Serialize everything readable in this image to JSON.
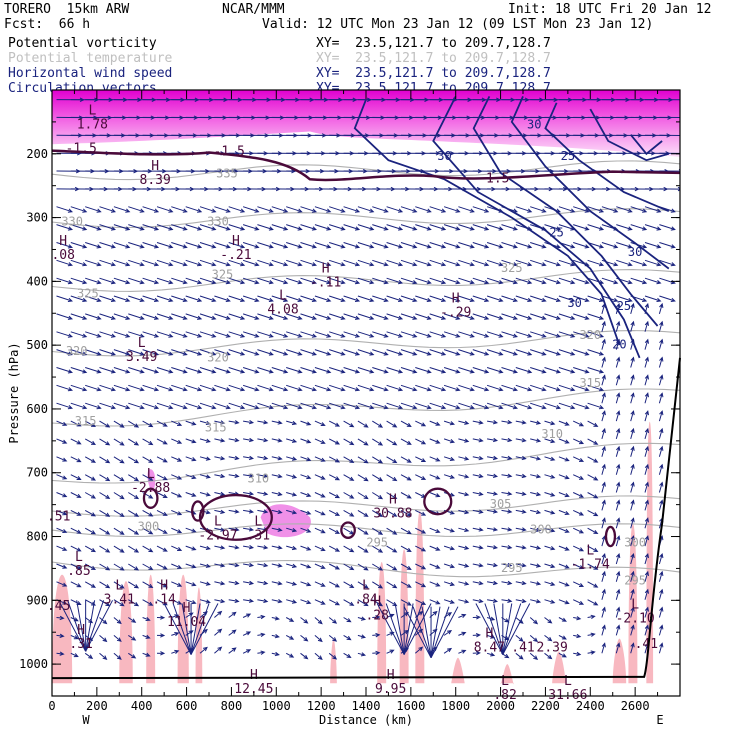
{
  "header": {
    "model": "TORERO  15km ARW",
    "org": "NCAR/MMM",
    "init": "Init: 18 UTC Fri 20 Jan 12",
    "fcst": "Fcst:  66 h",
    "valid": "Valid: 12 UTC Mon 23 Jan 12 (09 LST Mon 23 Jan 12)",
    "fields": [
      {
        "name": "Potential vorticity",
        "color": "#000000"
      },
      {
        "name": "Potential temperature",
        "color": "#c0c0c0"
      },
      {
        "name": "Horizontal wind speed",
        "color": "#1a237e"
      },
      {
        "name": "Circulation vectors",
        "color": "#1a237e"
      }
    ],
    "xy": "XY=  23.5,121.7 to 209.7,128.7"
  },
  "chart_data": {
    "type": "cross-section",
    "xlabel": "Distance (km)",
    "ylabel": "Pressure (hPa)",
    "xlim": [
      0,
      2800
    ],
    "ylim": [
      1050,
      100
    ],
    "x_ticks": [
      0,
      200,
      400,
      600,
      800,
      1000,
      1200,
      1400,
      1600,
      1800,
      2000,
      2200,
      2400,
      2600
    ],
    "y_ticks": [
      200,
      300,
      400,
      500,
      600,
      700,
      800,
      900,
      1000
    ],
    "x_end_labels": {
      "left": "W",
      "right": "E"
    },
    "theta_labels": [
      {
        "v": "335",
        "x": 780,
        "p": 232
      },
      {
        "v": "330",
        "x": 90,
        "p": 307
      },
      {
        "v": "330",
        "x": 740,
        "p": 307
      },
      {
        "v": "325",
        "x": 160,
        "p": 420
      },
      {
        "v": "325",
        "x": 760,
        "p": 390
      },
      {
        "v": "325",
        "x": 2050,
        "p": 380
      },
      {
        "v": "320",
        "x": 110,
        "p": 510
      },
      {
        "v": "320",
        "x": 740,
        "p": 520
      },
      {
        "v": "320",
        "x": 2400,
        "p": 485
      },
      {
        "v": "315",
        "x": 150,
        "p": 620
      },
      {
        "v": "315",
        "x": 730,
        "p": 630
      },
      {
        "v": "315",
        "x": 2400,
        "p": 560
      },
      {
        "v": "310",
        "x": 920,
        "p": 710
      },
      {
        "v": "310",
        "x": 2230,
        "p": 640
      },
      {
        "v": "305",
        "x": 2000,
        "p": 750
      },
      {
        "v": "300",
        "x": 430,
        "p": 785
      },
      {
        "v": "300",
        "x": 2180,
        "p": 790
      },
      {
        "v": "300",
        "x": 2600,
        "p": 810
      },
      {
        "v": "295",
        "x": 1450,
        "p": 810
      },
      {
        "v": "295",
        "x": 2050,
        "p": 850
      },
      {
        "v": "295",
        "x": 2600,
        "p": 870
      }
    ],
    "speed_labels": [
      {
        "v": "30",
        "x": 2150,
        "p": 160
      },
      {
        "v": "30",
        "x": 1750,
        "p": 210
      },
      {
        "v": "30",
        "x": 2600,
        "p": 360
      },
      {
        "v": "25",
        "x": 2250,
        "p": 330
      },
      {
        "v": "25",
        "x": 2550,
        "p": 445
      },
      {
        "v": "20",
        "x": 2530,
        "p": 505
      },
      {
        "v": "30",
        "x": 2330,
        "p": 440
      },
      {
        "v": "25",
        "x": 2300,
        "p": 210
      }
    ],
    "pv_extrema": [
      {
        "t": "L",
        "v": "1.78",
        "x": 180,
        "p": 160
      },
      {
        "t": "",
        "v": "-1.5",
        "x": 130,
        "p": 198
      },
      {
        "t": "H",
        "v": "8.39",
        "x": 460,
        "p": 247
      },
      {
        "t": "",
        "v": "-1.5",
        "x": 790,
        "p": 203
      },
      {
        "t": "H",
        "v": ".08",
        "x": 50,
        "p": 365
      },
      {
        "t": "H",
        "v": "-.21",
        "x": 820,
        "p": 365
      },
      {
        "t": "H",
        "v": "-.11",
        "x": 1220,
        "p": 408
      },
      {
        "t": "L",
        "v": "4.08",
        "x": 1030,
        "p": 450
      },
      {
        "t": "H",
        "v": "-.29",
        "x": 1800,
        "p": 455
      },
      {
        "t": "L",
        "v": "3.49",
        "x": 400,
        "p": 525
      },
      {
        "t": "",
        "v": "-1.5",
        "x": 1970,
        "p": 245
      },
      {
        "t": "L",
        "v": "-2.88",
        "x": 440,
        "p": 730
      },
      {
        "t": "",
        "v": ".51",
        "x": 30,
        "p": 775
      },
      {
        "t": "L",
        "v": "-2.97",
        "x": 740,
        "p": 805
      },
      {
        "t": "L",
        "v": ".31",
        "x": 920,
        "p": 805
      },
      {
        "t": "H",
        "v": "30.88",
        "x": 1520,
        "p": 770
      },
      {
        "t": "L",
        "v": ".85",
        "x": 120,
        "p": 860
      },
      {
        "t": "L",
        "v": "3.41",
        "x": 300,
        "p": 905
      },
      {
        "t": "H",
        "v": ".14",
        "x": 500,
        "p": 905
      },
      {
        "t": "L",
        "v": "-1.74",
        "x": 2400,
        "p": 850
      },
      {
        "t": "",
        "v": ".45",
        "x": 30,
        "p": 915
      },
      {
        "t": "H",
        "v": "11.04",
        "x": 600,
        "p": 940
      },
      {
        "t": "L",
        "v": ".84",
        "x": 1400,
        "p": 905
      },
      {
        "t": "H",
        "v": ".28",
        "x": 1450,
        "p": 930
      },
      {
        "t": "L",
        "v": "-2.10",
        "x": 2600,
        "p": 935
      },
      {
        "t": "H",
        "v": ".31",
        "x": 130,
        "p": 975
      },
      {
        "t": "H",
        "v": "8.47",
        "x": 1950,
        "p": 980
      },
      {
        "t": "",
        "v": ".41",
        "x": 2100,
        "p": 980
      },
      {
        "t": "",
        "v": "2.39",
        "x": 2230,
        "p": 980
      },
      {
        "t": "",
        "v": ".41",
        "x": 2650,
        "p": 975
      },
      {
        "t": "H",
        "v": "12.45",
        "x": 900,
        "p": 1045
      },
      {
        "t": "H",
        "v": "9.95",
        "x": 1510,
        "p": 1045
      },
      {
        "t": "L",
        "v": ".82",
        "x": 2020,
        "p": 1055
      },
      {
        "t": "L",
        "v": "31.66",
        "x": 2300,
        "p": 1055
      }
    ]
  }
}
